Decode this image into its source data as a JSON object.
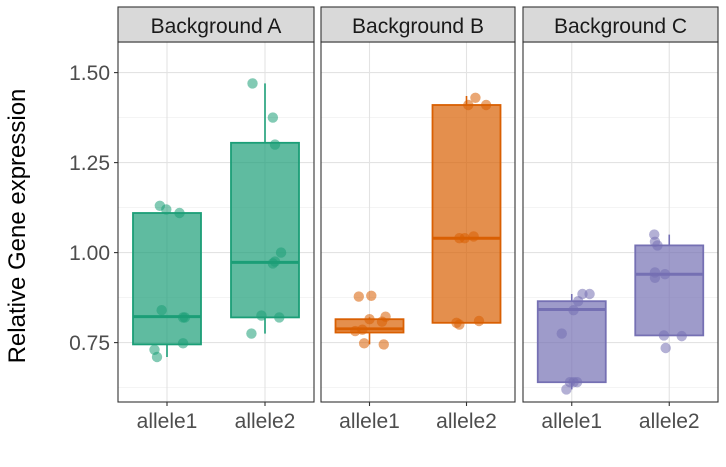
{
  "chart_data": {
    "type": "box",
    "ylabel": "Relative Gene expression",
    "xlabel": "",
    "ylim": [
      0.585,
      1.585
    ],
    "yticks": [
      "0.75",
      "1.00",
      "1.25",
      "1.50"
    ],
    "grid": true,
    "legend": "none",
    "categories": [
      "allele1",
      "allele2"
    ],
    "panels": [
      {
        "name": "Background A",
        "color": "#1b9e77",
        "boxes": [
          {
            "category": "allele1",
            "q1": 0.745,
            "median": 0.822,
            "q3": 1.11,
            "whisker_low": 0.71,
            "whisker_high": 1.11,
            "points": [
              [
                -0.2,
                1.13
              ],
              [
                -0.02,
                1.12
              ],
              [
                0.35,
                1.11
              ],
              [
                -0.15,
                0.84
              ],
              [
                0.45,
                0.82
              ],
              [
                0.5,
                0.82
              ],
              [
                0.45,
                0.748
              ],
              [
                -0.35,
                0.73
              ],
              [
                -0.28,
                0.71
              ]
            ]
          },
          {
            "category": "allele2",
            "q1": 0.82,
            "median": 0.973,
            "q3": 1.305,
            "whisker_low": 0.775,
            "whisker_high": 1.47,
            "points": [
              [
                -0.35,
                1.47
              ],
              [
                0.22,
                1.375
              ],
              [
                0.28,
                1.3
              ],
              [
                0.45,
                1.0
              ],
              [
                0.28,
                0.975
              ],
              [
                0.22,
                0.97
              ],
              [
                -0.1,
                0.825
              ],
              [
                0.4,
                0.82
              ],
              [
                -0.38,
                0.775
              ]
            ]
          }
        ]
      },
      {
        "name": "Background B",
        "color": "#d95f02",
        "boxes": [
          {
            "category": "allele1",
            "q1": 0.778,
            "median": 0.788,
            "q3": 0.815,
            "whisker_low": 0.745,
            "whisker_high": 0.82,
            "points": [
              [
                -0.3,
                0.878
              ],
              [
                0.05,
                0.88
              ],
              [
                0.45,
                0.822
              ],
              [
                0.35,
                0.808
              ],
              [
                0.0,
                0.815
              ],
              [
                -0.4,
                0.782
              ],
              [
                -0.2,
                0.786
              ],
              [
                -0.15,
                0.748
              ],
              [
                0.4,
                0.745
              ]
            ]
          },
          {
            "category": "allele2",
            "q1": 0.805,
            "median": 1.04,
            "q3": 1.41,
            "whisker_low": 0.805,
            "whisker_high": 1.435,
            "points": [
              [
                0.25,
                1.43
              ],
              [
                0.55,
                1.41
              ],
              [
                0.05,
                1.41
              ],
              [
                -0.2,
                1.04
              ],
              [
                -0.05,
                1.04
              ],
              [
                0.2,
                1.045
              ],
              [
                -0.2,
                0.8
              ],
              [
                -0.28,
                0.805
              ],
              [
                0.35,
                0.81
              ]
            ]
          }
        ]
      },
      {
        "name": "Background C",
        "color": "#7570b3",
        "boxes": [
          {
            "category": "allele1",
            "q1": 0.64,
            "median": 0.842,
            "q3": 0.865,
            "whisker_low": 0.62,
            "whisker_high": 0.885,
            "points": [
              [
                0.3,
                0.885
              ],
              [
                0.5,
                0.885
              ],
              [
                0.18,
                0.865
              ],
              [
                0.05,
                0.84
              ],
              [
                -0.28,
                0.775
              ],
              [
                -0.05,
                0.64
              ],
              [
                0.15,
                0.64
              ],
              [
                -0.15,
                0.62
              ],
              [
                0.05,
                0.64
              ]
            ]
          },
          {
            "category": "allele2",
            "q1": 0.77,
            "median": 0.94,
            "q3": 1.02,
            "whisker_low": 0.77,
            "whisker_high": 1.05,
            "points": [
              [
                -0.42,
                1.05
              ],
              [
                -0.4,
                1.03
              ],
              [
                -0.33,
                1.02
              ],
              [
                -0.4,
                0.945
              ],
              [
                -0.12,
                0.94
              ],
              [
                -0.4,
                0.93
              ],
              [
                -0.15,
                0.77
              ],
              [
                0.35,
                0.768
              ],
              [
                -0.1,
                0.735
              ]
            ]
          }
        ]
      }
    ]
  }
}
